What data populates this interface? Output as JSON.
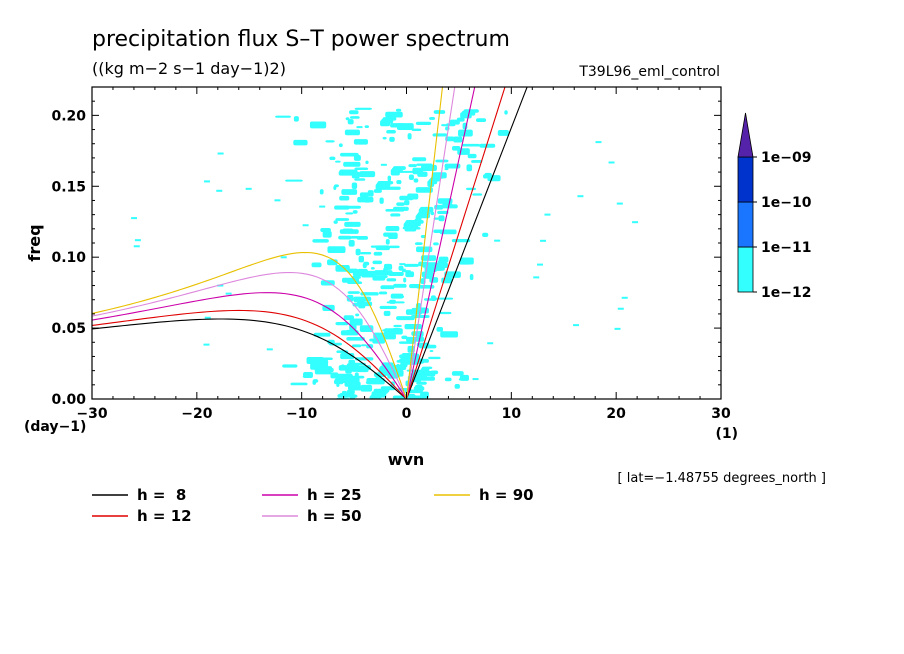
{
  "chart_data": {
    "type": "heatmap",
    "title": "precipitation flux S–T power spectrum",
    "subtitle": "((kg m−2 s−1 day−1)2)",
    "run_label": "T39L96_eml_control",
    "xlabel": "wvn",
    "ylabel": "freq",
    "x_unit_label": "(1)",
    "y_unit_label": "(day−1)",
    "xlim": [
      -30,
      30
    ],
    "ylim": [
      0,
      0.22
    ],
    "x_ticks": [
      -30,
      -20,
      -10,
      0,
      10,
      20,
      30
    ],
    "x_tick_labels": [
      "−30",
      "−20",
      "−10",
      "0",
      "10",
      "20",
      "30"
    ],
    "y_ticks": [
      0.0,
      0.05,
      0.1,
      0.15,
      0.2
    ],
    "y_tick_labels": [
      "0.00",
      "0.05",
      "0.10",
      "0.15",
      "0.20"
    ],
    "colorbar": {
      "labels": [
        "1e−12",
        "1e−11",
        "1e−10",
        "1e−09"
      ],
      "colors": [
        "#33ffff",
        "#1a75ff",
        "#0033cc",
        "#001a99",
        "#5522aa"
      ]
    },
    "fill_color": "#33ffff",
    "dispersion_curves": [
      {
        "name": "h =  8",
        "h": 8,
        "color": "#000000"
      },
      {
        "name": "h = 12",
        "h": 12,
        "color": "#e00000"
      },
      {
        "name": "h = 25",
        "h": 25,
        "color": "#cc00aa"
      },
      {
        "name": "h = 50",
        "h": 50,
        "color": "#dd88dd"
      },
      {
        "name": "h = 90",
        "h": 90,
        "color": "#e8c000"
      }
    ],
    "annotation": "[ lat=−1.48755 degrees_north ]"
  }
}
